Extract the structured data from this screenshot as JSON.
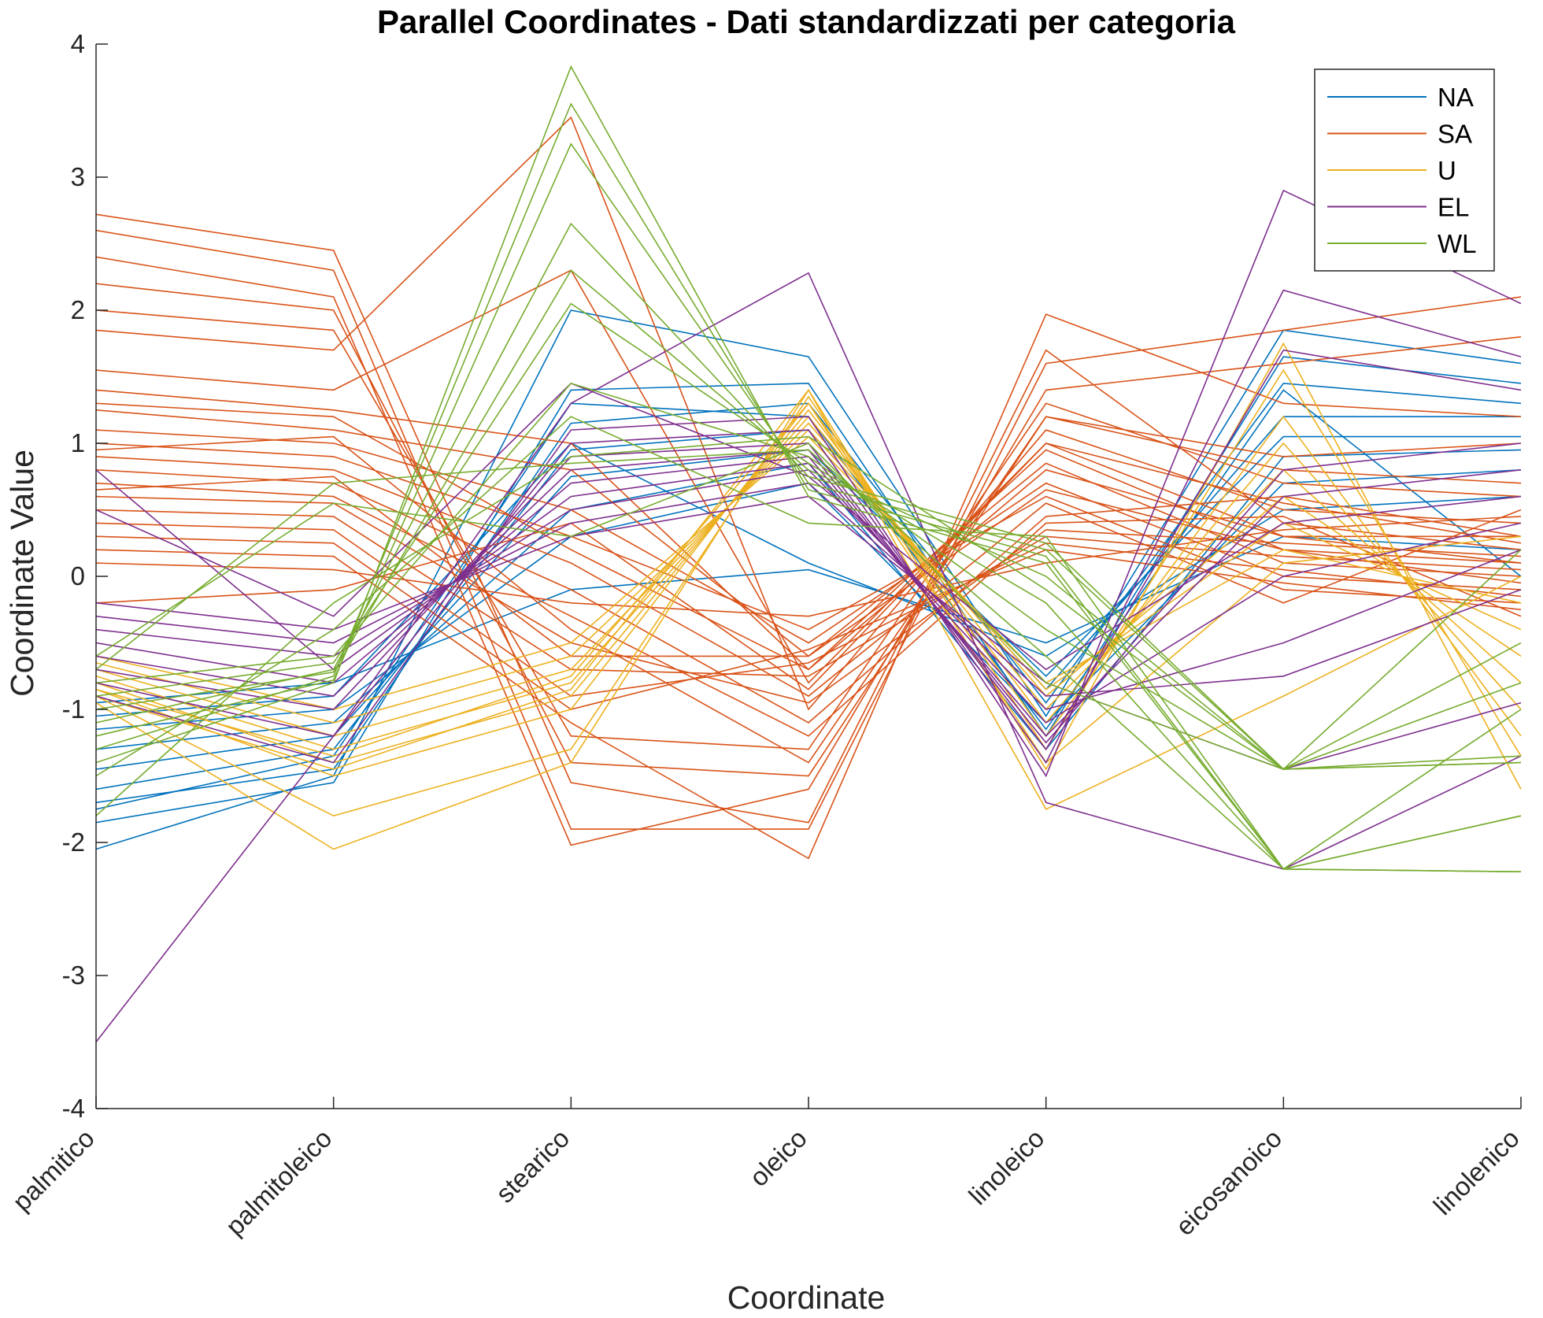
{
  "chart_data": {
    "type": "line",
    "title": "Parallel Coordinates - Dati standardizzati per categoria",
    "xlabel": "Coordinate",
    "ylabel": "Coordinate Value",
    "categories": [
      "palmitico",
      "palmitoleico",
      "stearico",
      "oleico",
      "linoleico",
      "eicosanoico",
      "linolenico"
    ],
    "ylim": [
      -4,
      4
    ],
    "yticks": [
      "-4",
      "-3",
      "-2",
      "-1",
      "0",
      "1",
      "2",
      "3",
      "4"
    ],
    "grid": false,
    "legend_position": "top-right",
    "series": [
      {
        "name": "NA",
        "color": "#0072BD",
        "lines": [
          [
            -2.05,
            -1.5,
            2.0,
            1.65,
            -1.05,
            1.85,
            1.6
          ],
          [
            -1.85,
            -1.55,
            1.4,
            1.45,
            -1.2,
            1.65,
            1.45
          ],
          [
            -1.7,
            -1.45,
            1.15,
            1.3,
            -0.95,
            1.45,
            1.3
          ],
          [
            -1.6,
            -1.3,
            0.95,
            1.1,
            -0.85,
            1.2,
            1.2
          ],
          [
            -1.45,
            -1.2,
            0.75,
            0.95,
            -0.75,
            1.05,
            1.05
          ],
          [
            -1.3,
            -1.1,
            0.5,
            0.85,
            -1.3,
            0.9,
            0.95
          ],
          [
            -1.15,
            -1.0,
            0.3,
            0.7,
            -1.1,
            0.7,
            0.8
          ],
          [
            -1.05,
            -0.9,
            1.0,
            0.1,
            -0.6,
            0.5,
            0.6
          ],
          [
            -0.95,
            -0.8,
            -0.1,
            0.05,
            -0.5,
            0.3,
            0.2
          ],
          [
            -1.75,
            -1.35,
            1.3,
            1.2,
            -1.15,
            1.4,
            0.0
          ]
        ]
      },
      {
        "name": "SA",
        "color": "#D95319",
        "lines": [
          [
            2.72,
            2.45,
            -1.55,
            -1.85,
            1.7,
            0.4,
            0.2
          ],
          [
            2.6,
            2.3,
            -1.9,
            -1.9,
            1.6,
            1.85,
            2.1
          ],
          [
            2.4,
            2.1,
            -2.02,
            -1.6,
            1.4,
            1.6,
            1.8
          ],
          [
            2.2,
            2.0,
            -1.4,
            -1.5,
            1.2,
            0.9,
            1.0
          ],
          [
            2.0,
            1.85,
            -1.2,
            -1.3,
            1.3,
            0.7,
            0.6
          ],
          [
            1.85,
            1.7,
            3.45,
            -1.0,
            1.1,
            0.5,
            0.4
          ],
          [
            1.55,
            1.4,
            2.3,
            -0.8,
            1.0,
            0.3,
            0.3
          ],
          [
            1.4,
            1.25,
            1.0,
            -0.7,
            0.95,
            0.2,
            0.1
          ],
          [
            1.25,
            1.1,
            0.8,
            -0.6,
            0.85,
            0.1,
            0.0
          ],
          [
            1.1,
            1.0,
            0.5,
            -0.5,
            0.7,
            0.0,
            -0.1
          ],
          [
            1.0,
            0.9,
            0.3,
            -0.4,
            0.6,
            -0.1,
            -0.2
          ],
          [
            0.9,
            0.8,
            0.1,
            -0.9,
            0.55,
            -0.2,
            0.5
          ],
          [
            0.8,
            0.7,
            -0.1,
            -1.1,
            0.45,
            0.6,
            0.3
          ],
          [
            0.7,
            0.6,
            -0.3,
            -1.2,
            0.4,
            0.45,
            -0.3
          ],
          [
            0.6,
            0.55,
            -0.5,
            -0.95,
            0.35,
            0.25,
            0.15
          ],
          [
            0.5,
            0.45,
            -0.7,
            -0.75,
            0.3,
            0.15,
            0.05
          ],
          [
            0.4,
            0.35,
            -0.9,
            -0.65,
            0.25,
            0.05,
            -0.15
          ],
          [
            0.3,
            0.25,
            -1.0,
            -0.55,
            0.2,
            -0.05,
            -0.25
          ],
          [
            0.2,
            0.15,
            -1.1,
            -2.12,
            1.97,
            1.3,
            1.2
          ],
          [
            0.1,
            0.05,
            -0.2,
            -0.3,
            0.1,
            0.35,
            0.45
          ],
          [
            -0.2,
            -0.1,
            0.4,
            -0.85,
            1.0,
            0.55,
            0.25
          ],
          [
            1.3,
            1.2,
            0.2,
            -0.7,
            0.8,
            0.3,
            0.1
          ],
          [
            0.95,
            1.05,
            -0.4,
            -1.4,
            1.2,
            0.8,
            0.7
          ],
          [
            0.65,
            0.75,
            -0.6,
            -0.6,
            0.65,
            0.2,
            -0.05
          ]
        ]
      },
      {
        "name": "U",
        "color": "#EDB120",
        "lines": [
          [
            -0.95,
            -2.05,
            -1.4,
            1.4,
            -1.45,
            1.75,
            -1.6
          ],
          [
            -0.9,
            -1.8,
            -1.3,
            1.35,
            -1.3,
            1.55,
            -1.35
          ],
          [
            -0.85,
            -1.5,
            -1.0,
            1.3,
            -1.2,
            1.2,
            -1.2
          ],
          [
            -0.8,
            -1.4,
            -0.9,
            1.25,
            -1.1,
            1.0,
            -1.0
          ],
          [
            -0.75,
            -1.3,
            -0.8,
            1.2,
            -1.0,
            0.8,
            -0.8
          ],
          [
            -0.7,
            -1.2,
            -0.7,
            1.15,
            -0.9,
            0.6,
            -0.6
          ],
          [
            -0.65,
            -1.1,
            -0.6,
            1.1,
            -0.85,
            0.4,
            -0.4
          ],
          [
            -0.6,
            -1.0,
            -0.5,
            1.05,
            -0.8,
            0.2,
            -0.2
          ],
          [
            -0.9,
            -1.45,
            -0.85,
            1.4,
            -1.75,
            -0.9,
            0.0
          ],
          [
            -0.85,
            -1.35,
            -0.75,
            1.3,
            -1.4,
            0.1,
            0.3
          ]
        ]
      },
      {
        "name": "EL",
        "color": "#7E2F8E",
        "lines": [
          [
            -3.5,
            -1.2,
            1.3,
            2.28,
            -1.7,
            -2.2,
            -1.35
          ],
          [
            -0.9,
            -1.4,
            1.1,
            1.2,
            -1.5,
            2.9,
            2.05
          ],
          [
            -0.8,
            -1.2,
            1.0,
            1.1,
            -1.4,
            2.15,
            1.65
          ],
          [
            -0.7,
            -1.0,
            0.9,
            1.0,
            -1.3,
            1.7,
            1.4
          ],
          [
            -0.6,
            -0.9,
            0.8,
            0.95,
            -1.25,
            0.8,
            1.0
          ],
          [
            -0.5,
            -0.8,
            0.7,
            0.9,
            -1.2,
            0.6,
            0.8
          ],
          [
            0.8,
            -0.7,
            0.6,
            0.85,
            -1.1,
            0.0,
            0.4
          ],
          [
            -0.4,
            -0.6,
            0.5,
            0.8,
            -1.0,
            -0.5,
            0.2
          ],
          [
            -0.3,
            -0.5,
            0.4,
            0.7,
            -0.9,
            -0.75,
            -0.1
          ],
          [
            -0.2,
            -0.4,
            0.3,
            0.6,
            -0.8,
            -1.45,
            -0.95
          ],
          [
            0.5,
            -0.3,
            1.45,
            0.75,
            -0.7,
            0.4,
            0.6
          ]
        ]
      },
      {
        "name": "WL",
        "color": "#77AC30",
        "lines": [
          [
            -1.4,
            -0.8,
            3.83,
            0.6,
            0.1,
            -2.2,
            -2.22
          ],
          [
            -1.3,
            -0.75,
            3.55,
            0.65,
            0.15,
            -2.2,
            -1.8
          ],
          [
            -1.2,
            -0.78,
            3.25,
            0.7,
            0.2,
            -1.45,
            -1.35
          ],
          [
            -1.1,
            -0.7,
            2.65,
            0.75,
            0.25,
            -1.45,
            -0.5
          ],
          [
            -1.0,
            -0.72,
            2.3,
            0.8,
            0.0,
            -1.45,
            0.2
          ],
          [
            -0.9,
            -0.65,
            2.05,
            0.85,
            -0.2,
            -2.2,
            -1.8
          ],
          [
            -0.8,
            -0.6,
            1.45,
            0.9,
            -0.4,
            -1.45,
            -1.4
          ],
          [
            -0.7,
            0.7,
            0.85,
            0.95,
            -0.6,
            -2.2,
            -1.0
          ],
          [
            -0.6,
            0.55,
            0.3,
            1.0,
            -0.8,
            -1.45,
            -0.8
          ],
          [
            -1.5,
            -0.4,
            1.2,
            0.4,
            0.3,
            -2.2,
            -2.22
          ],
          [
            -1.8,
            -0.2,
            0.9,
            1.05,
            -0.1,
            -1.45,
            -1.4
          ]
        ]
      }
    ]
  }
}
